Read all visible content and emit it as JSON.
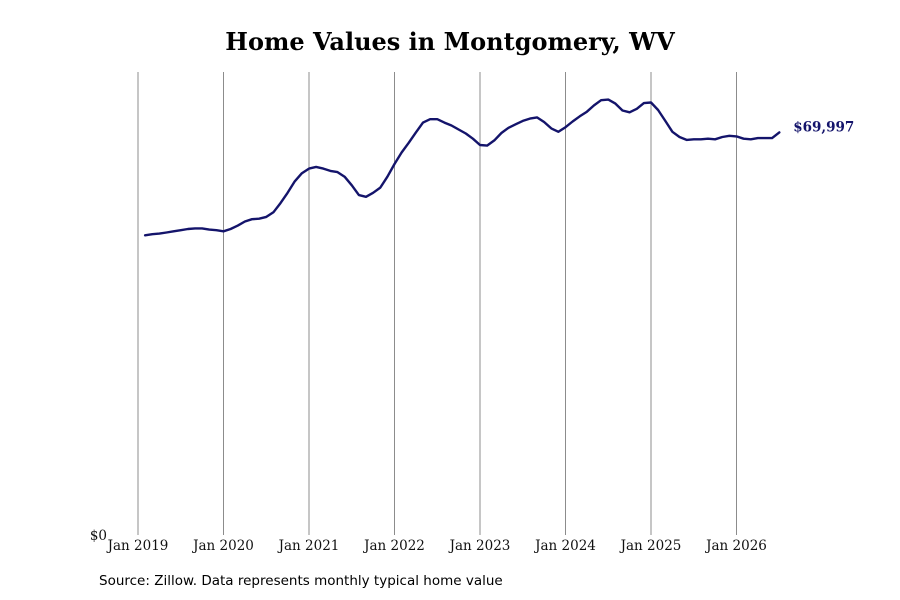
{
  "chart_data": {
    "type": "line",
    "title": "Home Values in Montgomery, WV",
    "xlabel": "",
    "ylabel": "",
    "x_start": "2019-01",
    "x_tick_labels": [
      "Jan 2019",
      "Jan 2020",
      "Jan 2021",
      "Jan 2022",
      "Jan 2023",
      "Jan 2024",
      "Jan 2025",
      "Jan 2026"
    ],
    "y_tick_labels": [
      "$0"
    ],
    "ylim": [
      0,
      80500
    ],
    "grid": "vertical lines at each January",
    "series": [
      {
        "end_label": "$69,997",
        "color": "#14146b",
        "x": [
          "2019-02",
          "2019-03",
          "2019-04",
          "2019-05",
          "2019-06",
          "2019-07",
          "2019-08",
          "2019-09",
          "2019-10",
          "2019-11",
          "2019-12",
          "2020-01",
          "2020-02",
          "2020-03",
          "2020-04",
          "2020-05",
          "2020-06",
          "2020-07",
          "2020-08",
          "2020-09",
          "2020-10",
          "2020-11",
          "2020-12",
          "2021-01",
          "2021-02",
          "2021-03",
          "2021-04",
          "2021-05",
          "2021-06",
          "2021-07",
          "2021-08",
          "2021-09",
          "2021-10",
          "2021-11",
          "2021-12",
          "2022-01",
          "2022-02",
          "2022-03",
          "2022-04",
          "2022-05",
          "2022-06",
          "2022-07",
          "2022-08",
          "2022-09",
          "2022-10",
          "2022-11",
          "2022-12",
          "2023-01",
          "2023-02",
          "2023-03",
          "2023-04",
          "2023-05",
          "2023-06",
          "2023-07",
          "2023-08",
          "2023-09",
          "2023-10",
          "2023-11",
          "2023-12",
          "2024-01",
          "2024-02",
          "2024-03",
          "2024-04",
          "2024-05",
          "2024-06",
          "2024-07",
          "2024-08",
          "2024-09",
          "2024-10",
          "2024-11",
          "2024-12",
          "2025-01",
          "2025-02",
          "2025-03",
          "2025-04",
          "2025-05",
          "2025-06",
          "2025-07",
          "2025-08",
          "2025-09",
          "2025-10",
          "2025-11",
          "2025-12",
          "2026-01",
          "2026-02",
          "2026-03",
          "2026-04",
          "2026-05",
          "2026-06",
          "2026-07"
        ],
        "y": [
          52100,
          52300,
          52400,
          52600,
          52800,
          53000,
          53200,
          53300,
          53300,
          53100,
          53000,
          52800,
          53200,
          53800,
          54500,
          54900,
          55000,
          55300,
          56100,
          57700,
          59500,
          61500,
          62900,
          63700,
          64000,
          63700,
          63300,
          63100,
          62300,
          60800,
          59100,
          58800,
          59500,
          60400,
          62300,
          64500,
          66500,
          68200,
          70000,
          71700,
          72300,
          72300,
          71700,
          71200,
          70500,
          69800,
          68900,
          67800,
          67700,
          68600,
          69900,
          70800,
          71400,
          72000,
          72400,
          72600,
          71800,
          70700,
          70100,
          70900,
          71900,
          72800,
          73600,
          74700,
          75600,
          75700,
          75000,
          73800,
          73500,
          74100,
          75100,
          75200,
          73900,
          72000,
          70100,
          69200,
          68700,
          68800,
          68800,
          68900,
          68800,
          69200,
          69400,
          69300,
          68900,
          68800,
          69000,
          69000,
          69000,
          69997
        ]
      }
    ]
  },
  "source_note": "Source: Zillow. Data represents monthly typical home value"
}
